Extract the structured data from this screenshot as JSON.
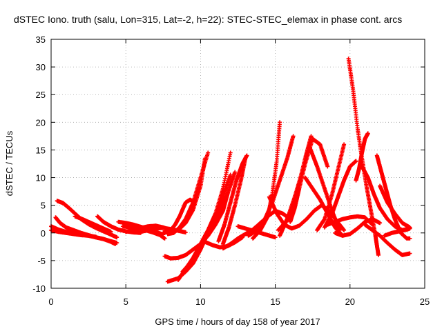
{
  "chart_data": {
    "type": "scatter",
    "title": "dSTEC Iono. truth (salu, Lon=315, Lat=-2, h=22): STEC-STEC_elemax in phase cont. arcs",
    "xlabel": "GPS time / hours of day 158 of year 2017",
    "ylabel": "dSTEC  / TECUs",
    "xlim": [
      0,
      25
    ],
    "ylim": [
      -10,
      35
    ],
    "x_ticks": [
      0,
      5,
      10,
      15,
      20,
      25
    ],
    "y_ticks": [
      -10,
      -5,
      0,
      5,
      10,
      15,
      20,
      25,
      30,
      35
    ],
    "grid": true,
    "marker": "plus",
    "color": "#ff0000",
    "series": [
      {
        "x": [
          0.0,
          0.5,
          1.0,
          1.5,
          2.0,
          2.5,
          3.0,
          3.5,
          4.0,
          4.4
        ],
        "y": [
          1.2,
          0.6,
          0.2,
          0.0,
          -0.2,
          -0.5,
          -0.8,
          -1.1,
          -1.5,
          -1.8
        ]
      },
      {
        "x": [
          0.0,
          0.5,
          1.0,
          1.5,
          2.0,
          2.5,
          3.0
        ],
        "y": [
          0.5,
          0.2,
          0.0,
          -0.2,
          -0.4,
          -0.5,
          -0.7
        ]
      },
      {
        "x": [
          0.3,
          0.6,
          1.0,
          1.5,
          2.0,
          2.5,
          3.0,
          3.5,
          4.0,
          4.3
        ],
        "y": [
          2.8,
          1.8,
          1.0,
          0.5,
          0.0,
          -0.4,
          -0.8,
          -1.1,
          -1.6,
          -2.0
        ]
      },
      {
        "x": [
          0.4,
          0.8,
          1.2,
          1.6,
          2.0,
          2.5,
          3.0,
          3.5,
          4.0,
          4.4
        ],
        "y": [
          5.8,
          5.4,
          4.5,
          3.5,
          2.5,
          1.6,
          0.9,
          0.3,
          -0.3,
          -0.8
        ]
      },
      {
        "x": [
          1.6,
          2.0,
          2.5,
          3.0,
          3.5,
          4.0
        ],
        "y": [
          3.0,
          2.6,
          2.0,
          1.4,
          0.8,
          0.2
        ]
      },
      {
        "x": [
          3.1,
          3.5,
          4.0,
          4.5,
          5.0,
          5.5,
          6.0
        ],
        "y": [
          3.0,
          2.0,
          1.2,
          0.6,
          0.3,
          0.1,
          0.0
        ]
      },
      {
        "x": [
          4.5,
          5.0,
          5.5,
          6.0,
          6.5,
          7.0,
          7.5
        ],
        "y": [
          2.0,
          1.8,
          1.5,
          1.1,
          0.7,
          0.2,
          -0.3
        ]
      },
      {
        "x": [
          4.8,
          5.3,
          5.8,
          6.3,
          6.8,
          7.3,
          7.6
        ],
        "y": [
          1.2,
          1.0,
          0.8,
          0.5,
          0.1,
          -0.4,
          -1.0
        ]
      },
      {
        "x": [
          5.0,
          5.5,
          6.0,
          6.5,
          7.0,
          7.5,
          8.0
        ],
        "y": [
          0.2,
          0.5,
          0.9,
          1.2,
          1.3,
          1.0,
          0.5
        ]
      },
      {
        "x": [
          6.0,
          6.5,
          7.0,
          7.5,
          8.0,
          8.5,
          9.0
        ],
        "y": [
          0.2,
          0.5,
          0.8,
          0.9,
          0.7,
          0.4,
          0.1
        ]
      },
      {
        "x": [
          7.5,
          8.0,
          8.5,
          9.0,
          9.5,
          10.0,
          10.3
        ],
        "y": [
          0.1,
          0.1,
          0.5,
          1.8,
          4.2,
          8.5,
          13.5
        ]
      },
      {
        "x": [
          7.8,
          8.2,
          8.6,
          9.0,
          9.5,
          10.0,
          10.5
        ],
        "y": [
          -0.2,
          0.0,
          1.0,
          2.5,
          5.5,
          10.0,
          14.5
        ]
      },
      {
        "x": [
          8.0,
          8.3,
          8.6,
          9.0,
          9.3,
          9.6
        ],
        "y": [
          0.5,
          1.5,
          3.0,
          5.5,
          6.0,
          5.5
        ]
      },
      {
        "x": [
          7.6,
          8.0,
          8.5,
          9.0,
          9.5,
          10.0,
          10.5,
          11.0,
          11.5,
          11.8
        ],
        "y": [
          -4.2,
          -4.6,
          -4.5,
          -4.0,
          -3.0,
          -2.0,
          -0.5,
          1.5,
          4.0,
          7.0
        ]
      },
      {
        "x": [
          8.5,
          9.0,
          9.5,
          10.0,
          10.5,
          11.0,
          11.5,
          12.0
        ],
        "y": [
          -8.5,
          -6.5,
          -4.5,
          -2.0,
          0.5,
          3.5,
          8.0,
          14.5
        ]
      },
      {
        "x": [
          7.8,
          8.5,
          9.0,
          9.5,
          10.0,
          10.5,
          11.0,
          11.5,
          12.0
        ],
        "y": [
          -8.8,
          -8.2,
          -7.0,
          -5.5,
          -3.0,
          0.0,
          3.0,
          6.5,
          10.5
        ]
      },
      {
        "x": [
          8.8,
          9.3,
          9.8,
          10.3,
          10.8,
          11.3,
          11.8,
          12.3
        ],
        "y": [
          -7.0,
          -5.5,
          -3.5,
          -1.0,
          1.5,
          4.0,
          7.0,
          11.0
        ]
      },
      {
        "x": [
          10.2,
          10.8,
          11.3,
          11.8,
          12.3,
          12.8
        ],
        "y": [
          -1.5,
          -2.2,
          -2.6,
          -2.4,
          -1.7,
          -0.8
        ]
      },
      {
        "x": [
          11.5,
          12.0,
          12.5,
          13.0,
          13.5,
          14.0,
          14.5,
          15.0,
          15.5,
          16.0
        ],
        "y": [
          -2.8,
          -2.0,
          -1.0,
          -0.2,
          0.6,
          1.8,
          3.0,
          4.0,
          3.5,
          2.5
        ]
      },
      {
        "x": [
          11.2,
          11.6,
          12.0,
          12.4,
          12.8,
          13.1
        ],
        "y": [
          -1.5,
          1.5,
          5.5,
          9.5,
          12.5,
          14.0
        ]
      },
      {
        "x": [
          11.5,
          11.9,
          12.3,
          12.7,
          13.0
        ],
        "y": [
          -2.0,
          1.0,
          5.0,
          9.5,
          13.5
        ]
      },
      {
        "x": [
          12.5,
          13.0,
          13.5,
          14.0,
          14.5,
          15.0
        ],
        "y": [
          1.2,
          0.8,
          0.4,
          0.0,
          -0.4,
          -0.8
        ]
      },
      {
        "x": [
          13.5,
          14.0,
          14.5,
          14.8,
          15.1,
          15.3
        ],
        "y": [
          -1.0,
          0.5,
          3.0,
          7.0,
          13.0,
          20.0
        ]
      },
      {
        "x": [
          13.2,
          13.8,
          14.3,
          14.8,
          15.3,
          15.8,
          16.2
        ],
        "y": [
          -0.5,
          0.5,
          2.5,
          5.5,
          9.5,
          13.5,
          17.5
        ]
      },
      {
        "x": [
          14.6,
          15.1,
          15.6,
          16.1,
          16.6,
          17.1,
          17.6,
          18.1,
          18.6,
          19.1,
          19.6
        ],
        "y": [
          6.5,
          3.5,
          1.5,
          0.8,
          1.3,
          2.5,
          4.0,
          5.0,
          4.0,
          2.2,
          0.5
        ]
      },
      {
        "x": [
          15.2,
          15.7,
          16.2,
          16.6,
          17.0,
          17.4
        ],
        "y": [
          0.5,
          2.0,
          5.0,
          9.0,
          13.5,
          17.5
        ]
      },
      {
        "x": [
          15.3,
          15.8,
          16.3,
          16.8,
          17.3,
          17.8,
          18.3,
          18.8,
          19.3
        ],
        "y": [
          -0.5,
          2.5,
          6.5,
          11.0,
          15.5,
          12.0,
          8.0,
          4.0,
          0.5
        ]
      },
      {
        "x": [
          16.0,
          16.3,
          16.6,
          17.0,
          17.5,
          18.0,
          18.5
        ],
        "y": [
          2.0,
          4.5,
          8.0,
          12.5,
          17.0,
          16.0,
          12.0
        ]
      },
      {
        "x": [
          17.0,
          17.5,
          18.0,
          18.5,
          19.0,
          19.5
        ],
        "y": [
          10.0,
          8.0,
          6.0,
          3.5,
          1.0,
          -0.5
        ]
      },
      {
        "x": [
          17.8,
          18.3,
          18.8,
          19.2,
          19.6
        ],
        "y": [
          0.5,
          2.5,
          7.0,
          11.5,
          16.0
        ]
      },
      {
        "x": [
          18.3,
          18.8,
          19.2,
          19.6,
          20.0,
          20.4
        ],
        "y": [
          1.0,
          3.5,
          6.5,
          9.5,
          12.0,
          13.0
        ]
      },
      {
        "x": [
          18.5,
          19.0,
          19.5,
          20.0,
          20.5,
          21.0,
          21.5
        ],
        "y": [
          1.5,
          2.0,
          2.5,
          2.8,
          3.0,
          2.8,
          1.5
        ]
      },
      {
        "x": [
          19.0,
          19.5,
          20.0,
          20.5,
          21.0,
          21.5,
          22.0
        ],
        "y": [
          0.0,
          -0.5,
          -0.2,
          0.8,
          2.0,
          2.5,
          1.8
        ]
      },
      {
        "x": [
          19.9,
          20.2,
          20.5,
          20.8,
          21.1,
          21.4,
          21.7,
          21.9
        ],
        "y": [
          31.5,
          26.0,
          19.0,
          13.5,
          8.5,
          4.0,
          -0.5,
          -4.0
        ]
      },
      {
        "x": [
          20.4,
          20.6,
          20.8,
          21.0,
          21.2
        ],
        "y": [
          9.5,
          11.5,
          14.5,
          17.0,
          18.0
        ]
      },
      {
        "x": [
          20.8,
          21.2,
          21.6,
          22.0,
          22.5,
          23.0,
          23.5,
          24.0
        ],
        "y": [
          12.0,
          10.0,
          7.0,
          4.5,
          2.5,
          1.2,
          0.5,
          0.8
        ]
      },
      {
        "x": [
          21.8,
          22.1,
          22.4,
          22.7,
          23.0,
          23.4,
          23.8,
          24.0
        ],
        "y": [
          14.0,
          11.0,
          8.0,
          5.0,
          2.5,
          0.0,
          -1.0,
          -1.0
        ]
      },
      {
        "x": [
          21.0,
          21.5,
          22.0,
          22.5,
          23.0,
          23.5,
          24.0
        ],
        "y": [
          1.5,
          0.5,
          -0.5,
          -1.8,
          -3.0,
          -4.0,
          -3.7
        ]
      },
      {
        "x": [
          22.0,
          22.5,
          23.0,
          23.5,
          24.0
        ],
        "y": [
          8.5,
          5.5,
          3.5,
          1.8,
          1.0
        ]
      },
      {
        "x": [
          22.3,
          22.8,
          23.3,
          23.8,
          24.0
        ],
        "y": [
          -0.5,
          0.0,
          0.3,
          0.6,
          0.8
        ]
      }
    ]
  }
}
